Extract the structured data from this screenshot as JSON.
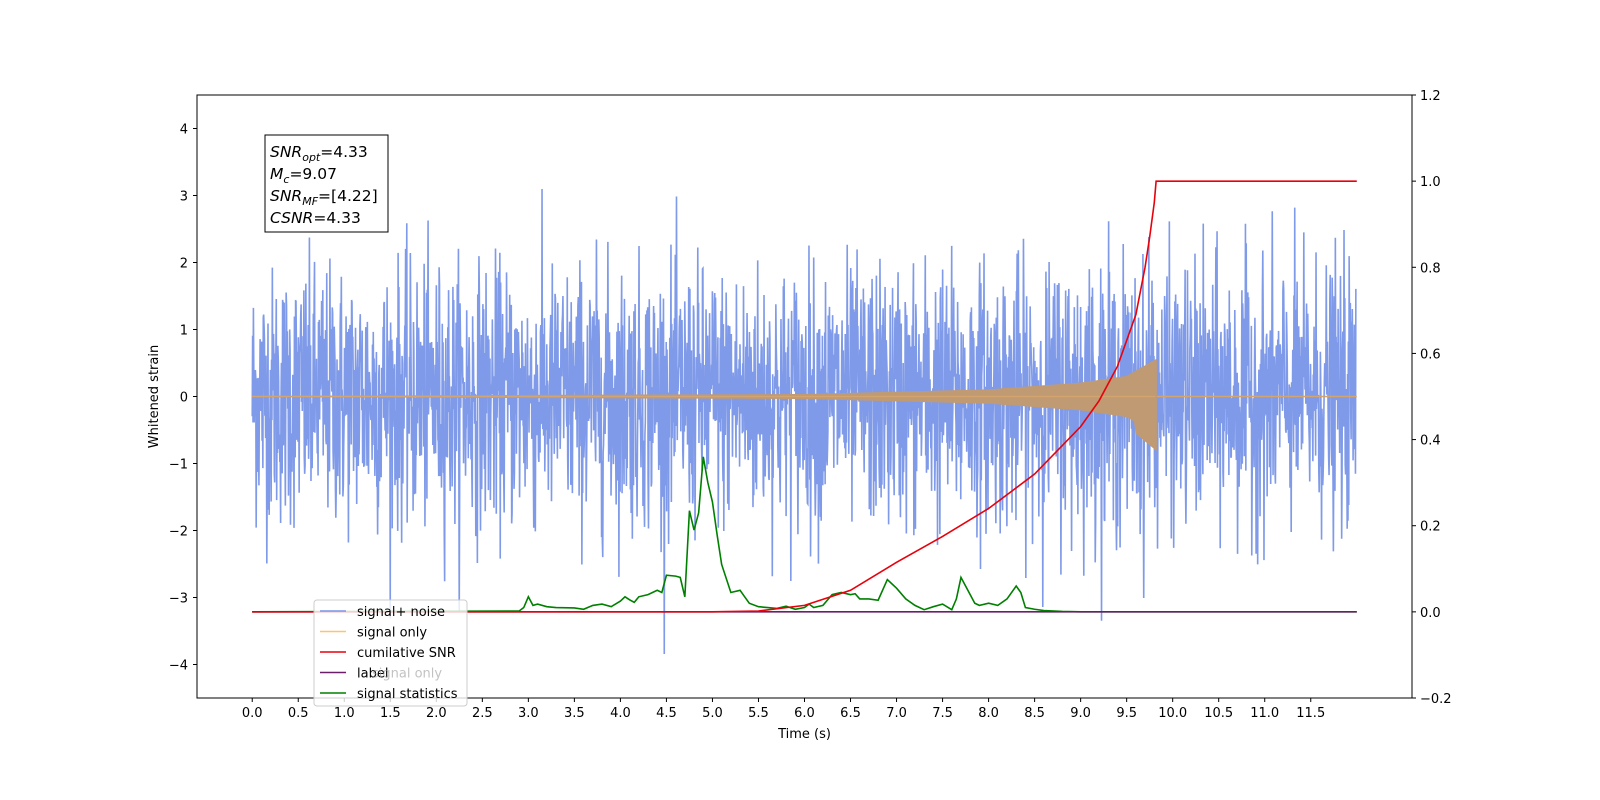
{
  "chart_data": {
    "type": "line",
    "xlabel": "Time (s)",
    "ylabel": "Whitened strain",
    "xlim": [
      -0.6,
      12.6
    ],
    "ylim": [
      -4.5,
      4.5
    ],
    "y2lim": [
      -0.2,
      1.2
    ],
    "x_ticks": [
      "0.0",
      "0.5",
      "1.0",
      "1.5",
      "2.0",
      "2.5",
      "3.0",
      "3.5",
      "4.0",
      "4.5",
      "5.0",
      "5.5",
      "6.0",
      "6.5",
      "7.0",
      "7.5",
      "8.0",
      "8.5",
      "9.0",
      "9.5",
      "10.0",
      "10.5",
      "11.0",
      "11.5"
    ],
    "y_ticks": [
      "4",
      "3",
      "2",
      "1",
      "0",
      "−1",
      "−2",
      "−3",
      "−4"
    ],
    "y2_ticks": [
      "1.2",
      "1.0",
      "0.8",
      "0.6",
      "0.4",
      "0.2",
      "0.0",
      "−0.2"
    ],
    "grid": false,
    "legend_position": "lower-left",
    "annotation": {
      "snr_opt_sym": "SNR",
      "snr_opt_sub": "opt",
      "snr_opt_val": "=4.33",
      "mc_sym": "M",
      "mc_sub": "c",
      "mc_val": "=9.07",
      "snr_mf_sym": "SNR",
      "snr_mf_sub": "MF",
      "snr_mf_val": "=[4.22]",
      "csnr_sym": "CSNR",
      "csnr_val": "=4.33"
    },
    "series": [
      {
        "name": "signal+ noise",
        "color": "#7895e7",
        "axis": "left",
        "noise_sigma": 1.0,
        "x_range": [
          0.0,
          11.99
        ]
      },
      {
        "name": "signal only",
        "color": "#ffc36b",
        "axis": "left",
        "chirp_end_time": 9.82,
        "peak_amplitude": 0.5,
        "envelope": [
          [
            0,
            0.002
          ],
          [
            6,
            0.03
          ],
          [
            8,
            0.1
          ],
          [
            9,
            0.2
          ],
          [
            9.5,
            0.3
          ],
          [
            9.82,
            0.55
          ],
          [
            9.83,
            0
          ]
        ]
      },
      {
        "name": "cumilative SNR",
        "color": "#e8000b",
        "axis": "right",
        "x": [
          0,
          5.0,
          5.5,
          6.0,
          6.5,
          7.0,
          7.5,
          8.0,
          8.5,
          9.0,
          9.2,
          9.4,
          9.6,
          9.7,
          9.75,
          9.8,
          9.82,
          12.0
        ],
        "y": [
          0,
          0,
          0.002,
          0.015,
          0.05,
          0.115,
          0.175,
          0.24,
          0.32,
          0.43,
          0.49,
          0.57,
          0.69,
          0.8,
          0.87,
          0.95,
          1.0,
          1.0
        ]
      },
      {
        "name": "label",
        "color": "#6b1f6b",
        "axis": "right",
        "x": [
          0.0,
          12.0
        ],
        "y": [
          0.0,
          0.0
        ]
      },
      {
        "name": "signal statistics",
        "color": "#008000",
        "axis": "right",
        "x": [
          0,
          2.9,
          2.95,
          3.0,
          3.05,
          3.1,
          3.2,
          3.3,
          3.5,
          3.6,
          3.7,
          3.8,
          3.9,
          4.0,
          4.05,
          4.1,
          4.15,
          4.2,
          4.3,
          4.4,
          4.45,
          4.5,
          4.6,
          4.65,
          4.7,
          4.75,
          4.8,
          4.85,
          4.9,
          4.95,
          5.0,
          5.05,
          5.1,
          5.2,
          5.3,
          5.35,
          5.4,
          5.5,
          5.6,
          5.7,
          5.8,
          5.9,
          6.0,
          6.05,
          6.1,
          6.2,
          6.3,
          6.4,
          6.5,
          6.55,
          6.6,
          6.7,
          6.8,
          6.9,
          7.0,
          7.1,
          7.2,
          7.3,
          7.4,
          7.5,
          7.6,
          7.65,
          7.7,
          7.75,
          7.8,
          7.85,
          7.9,
          8.0,
          8.1,
          8.2,
          8.3,
          8.35,
          8.4,
          8.5,
          8.6,
          8.8,
          9.0,
          12.0
        ],
        "y": [
          0,
          0.002,
          0.01,
          0.035,
          0.015,
          0.018,
          0.012,
          0.01,
          0.009,
          0.006,
          0.015,
          0.018,
          0.012,
          0.025,
          0.035,
          0.028,
          0.022,
          0.035,
          0.04,
          0.05,
          0.045,
          0.085,
          0.083,
          0.08,
          0.035,
          0.235,
          0.19,
          0.23,
          0.36,
          0.3,
          0.255,
          0.18,
          0.11,
          0.045,
          0.05,
          0.035,
          0.02,
          0.012,
          0.01,
          0.008,
          0.013,
          0.006,
          0.01,
          0.018,
          0.01,
          0.015,
          0.04,
          0.045,
          0.04,
          0.042,
          0.03,
          0.03,
          0.027,
          0.075,
          0.055,
          0.03,
          0.015,
          0.005,
          0.012,
          0.018,
          0.005,
          0.03,
          0.08,
          0.06,
          0.04,
          0.02,
          0.015,
          0.02,
          0.015,
          0.03,
          0.06,
          0.045,
          0.01,
          0.006,
          0.003,
          0.001,
          0.0,
          0.0
        ]
      }
    ],
    "legend_extra_text": "signal only"
  }
}
